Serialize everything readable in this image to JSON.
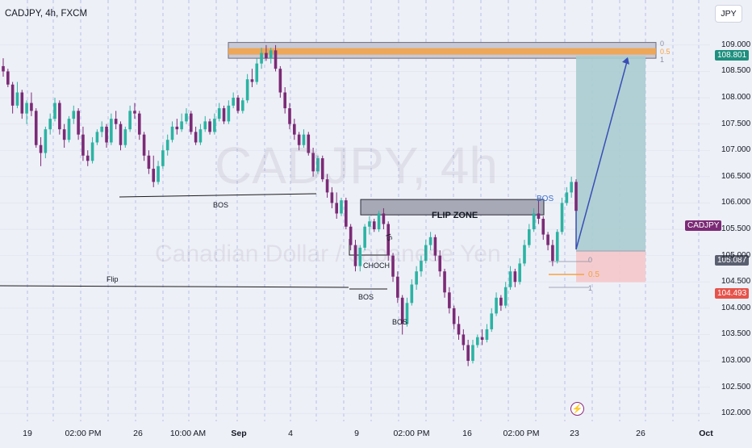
{
  "title": "CADJPY, 4h, FXCM",
  "currency_button": "JPY",
  "symbol_tag": "CADJPY",
  "price_tags": {
    "current": "108.801",
    "entry": "105.087",
    "stop": "104.493"
  },
  "watermark": {
    "line1": "CADJPY, 4h",
    "line2": "Canadian Dollar / Japanese Yen"
  },
  "colors": {
    "bull": "#2bb3a3",
    "bear": "#7b2a76",
    "target_zone": "#a9ccd0",
    "stop_zone": "#f3c9cc",
    "fib_orange": "#f5a142",
    "arrow": "#3a4db5"
  },
  "annotations": {
    "flip_zone": "FLIP ZONE",
    "bos_left": "BOS",
    "bos_right_blue": "BOS",
    "bos_low": "BOS",
    "bos_mid": "BOS",
    "choch": "CHOCH",
    "flip": "Flip",
    "sweep": "IS",
    "fib_top": [
      "0",
      "0.5",
      "1"
    ],
    "fib_bottom": [
      "0",
      "0.5",
      "1"
    ]
  },
  "chart_data": {
    "type": "candlestick",
    "title": "CADJPY, 4h, FXCM",
    "y_ticks": [
      "109.000",
      "108.500",
      "108.000",
      "107.500",
      "107.000",
      "106.500",
      "106.000",
      "105.500",
      "105.000",
      "104.500",
      "104.000",
      "103.500",
      "103.000",
      "102.500",
      "102.000"
    ],
    "x_ticks": [
      "19",
      "02:00 PM",
      "26",
      "10:00 AM",
      "Sep",
      "4",
      "9",
      "02:00 PM",
      "16",
      "02:00 PM",
      "23",
      "26",
      "Oct"
    ],
    "ylim": [
      101.85,
      109.55
    ],
    "levels": {
      "supply_zone": [
        108.75,
        109.05
      ],
      "supply_mid": 108.88,
      "flip_zone": [
        105.82,
        106.02
      ],
      "entry": 105.087,
      "stop_zone": [
        104.493,
        105.087
      ],
      "target": 108.801
    },
    "candles_ohlc": [
      [
        108.6,
        108.75,
        108.4,
        108.5
      ],
      [
        108.5,
        108.55,
        108.2,
        108.25
      ],
      [
        108.25,
        108.3,
        107.7,
        107.85
      ],
      [
        107.85,
        108.3,
        107.8,
        108.1
      ],
      [
        108.1,
        108.15,
        107.6,
        107.7
      ],
      [
        107.7,
        107.95,
        107.5,
        107.9
      ],
      [
        107.9,
        108.1,
        107.65,
        107.75
      ],
      [
        107.75,
        107.8,
        107.05,
        107.1
      ],
      [
        107.1,
        107.25,
        106.7,
        106.95
      ],
      [
        106.95,
        107.45,
        106.85,
        107.4
      ],
      [
        107.4,
        107.7,
        107.3,
        107.6
      ],
      [
        107.6,
        108.0,
        107.55,
        107.9
      ],
      [
        107.9,
        107.95,
        107.3,
        107.4
      ],
      [
        107.4,
        107.5,
        107.05,
        107.2
      ],
      [
        107.2,
        107.65,
        107.15,
        107.6
      ],
      [
        107.6,
        107.85,
        107.5,
        107.75
      ],
      [
        107.75,
        107.8,
        107.2,
        107.3
      ],
      [
        107.3,
        107.45,
        106.8,
        106.9
      ],
      [
        106.9,
        107.0,
        106.7,
        106.8
      ],
      [
        106.8,
        107.25,
        106.75,
        107.15
      ],
      [
        107.15,
        107.4,
        107.1,
        107.35
      ],
      [
        107.35,
        107.55,
        107.25,
        107.45
      ],
      [
        107.45,
        107.5,
        107.05,
        107.15
      ],
      [
        107.15,
        107.7,
        107.1,
        107.6
      ],
      [
        107.6,
        107.75,
        107.4,
        107.5
      ],
      [
        107.5,
        107.55,
        107.0,
        107.1
      ],
      [
        107.1,
        107.45,
        107.05,
        107.4
      ],
      [
        107.4,
        107.85,
        107.35,
        107.75
      ],
      [
        107.75,
        107.9,
        107.6,
        107.7
      ],
      [
        107.7,
        107.75,
        107.2,
        107.3
      ],
      [
        107.3,
        107.35,
        106.8,
        106.9
      ],
      [
        106.9,
        107.0,
        106.55,
        106.65
      ],
      [
        106.65,
        106.9,
        106.3,
        106.4
      ],
      [
        106.4,
        106.8,
        106.35,
        106.7
      ],
      [
        106.7,
        107.1,
        106.65,
        107.0
      ],
      [
        107.0,
        107.3,
        106.9,
        107.2
      ],
      [
        107.2,
        107.55,
        107.15,
        107.45
      ],
      [
        107.45,
        107.6,
        107.3,
        107.4
      ],
      [
        107.4,
        107.7,
        107.35,
        107.55
      ],
      [
        107.55,
        107.8,
        107.5,
        107.7
      ],
      [
        107.7,
        107.75,
        107.3,
        107.35
      ],
      [
        107.35,
        107.45,
        107.1,
        107.15
      ],
      [
        107.15,
        107.5,
        107.1,
        107.4
      ],
      [
        107.4,
        107.65,
        107.35,
        107.55
      ],
      [
        107.55,
        107.6,
        107.3,
        107.35
      ],
      [
        107.35,
        107.7,
        107.3,
        107.6
      ],
      [
        107.6,
        107.9,
        107.55,
        107.8
      ],
      [
        107.8,
        107.85,
        107.5,
        107.55
      ],
      [
        107.55,
        107.95,
        107.5,
        107.85
      ],
      [
        107.85,
        108.1,
        107.8,
        108.0
      ],
      [
        108.0,
        108.05,
        107.7,
        107.75
      ],
      [
        107.75,
        108.0,
        107.7,
        107.95
      ],
      [
        107.95,
        108.45,
        107.9,
        108.35
      ],
      [
        108.35,
        108.55,
        108.2,
        108.3
      ],
      [
        108.3,
        108.75,
        108.25,
        108.65
      ],
      [
        108.65,
        108.95,
        108.55,
        108.85
      ],
      [
        108.85,
        109.0,
        108.7,
        108.75
      ],
      [
        108.75,
        108.95,
        108.65,
        108.9
      ],
      [
        108.9,
        109.0,
        108.5,
        108.55
      ],
      [
        108.55,
        108.6,
        108.0,
        108.1
      ],
      [
        108.1,
        108.2,
        107.7,
        107.8
      ],
      [
        107.8,
        107.9,
        107.4,
        107.5
      ],
      [
        107.5,
        107.6,
        107.2,
        107.3
      ],
      [
        107.3,
        107.35,
        107.0,
        107.1
      ],
      [
        107.1,
        107.4,
        107.05,
        107.3
      ],
      [
        107.3,
        107.35,
        106.9,
        106.95
      ],
      [
        106.95,
        107.05,
        106.5,
        106.6
      ],
      [
        106.6,
        106.9,
        106.55,
        106.85
      ],
      [
        106.85,
        106.9,
        106.4,
        106.45
      ],
      [
        106.45,
        106.55,
        106.1,
        106.2
      ],
      [
        106.2,
        106.3,
        105.9,
        106.0
      ],
      [
        106.0,
        106.2,
        105.7,
        105.8
      ],
      [
        105.8,
        106.1,
        105.75,
        106.05
      ],
      [
        106.05,
        106.1,
        105.5,
        105.55
      ],
      [
        105.55,
        105.6,
        105.1,
        105.2
      ],
      [
        105.2,
        105.3,
        104.7,
        104.8
      ],
      [
        104.8,
        105.2,
        104.7,
        105.15
      ],
      [
        105.15,
        105.6,
        105.1,
        105.55
      ],
      [
        105.55,
        105.75,
        105.4,
        105.65
      ],
      [
        105.65,
        105.7,
        105.45,
        105.5
      ],
      [
        105.5,
        105.85,
        105.45,
        105.8
      ],
      [
        105.8,
        105.9,
        105.5,
        105.6
      ],
      [
        105.6,
        105.65,
        104.9,
        105.0
      ],
      [
        105.0,
        105.05,
        104.5,
        104.6
      ],
      [
        104.6,
        104.7,
        104.1,
        104.2
      ],
      [
        104.2,
        104.25,
        103.5,
        103.7
      ],
      [
        103.7,
        104.2,
        103.65,
        104.1
      ],
      [
        104.1,
        104.55,
        104.05,
        104.45
      ],
      [
        104.45,
        104.8,
        104.35,
        104.7
      ],
      [
        104.7,
        105.0,
        104.6,
        104.9
      ],
      [
        104.9,
        105.3,
        104.85,
        105.2
      ],
      [
        105.2,
        105.45,
        105.1,
        105.35
      ],
      [
        105.35,
        105.4,
        104.9,
        105.0
      ],
      [
        105.0,
        105.1,
        104.6,
        104.7
      ],
      [
        104.7,
        104.75,
        104.2,
        104.3
      ],
      [
        104.3,
        104.4,
        103.9,
        104.0
      ],
      [
        104.0,
        104.05,
        103.6,
        103.7
      ],
      [
        103.7,
        103.85,
        103.4,
        103.5
      ],
      [
        103.5,
        103.6,
        103.2,
        103.3
      ],
      [
        103.3,
        103.4,
        102.9,
        103.0
      ],
      [
        103.0,
        103.4,
        102.95,
        103.3
      ],
      [
        103.3,
        103.5,
        103.25,
        103.45
      ],
      [
        103.45,
        103.6,
        103.3,
        103.4
      ],
      [
        103.4,
        103.7,
        103.35,
        103.6
      ],
      [
        103.6,
        104.0,
        103.55,
        103.9
      ],
      [
        103.9,
        104.3,
        103.85,
        104.2
      ],
      [
        104.2,
        104.25,
        103.95,
        104.05
      ],
      [
        104.05,
        104.5,
        104.0,
        104.4
      ],
      [
        104.4,
        104.8,
        104.35,
        104.7
      ],
      [
        104.7,
        104.75,
        104.4,
        104.5
      ],
      [
        104.5,
        104.95,
        104.45,
        104.85
      ],
      [
        104.85,
        105.3,
        104.8,
        105.2
      ],
      [
        105.2,
        105.6,
        105.15,
        105.5
      ],
      [
        105.5,
        105.9,
        105.45,
        105.8
      ],
      [
        105.8,
        106.05,
        105.6,
        105.7
      ],
      [
        105.7,
        105.75,
        105.3,
        105.4
      ],
      [
        105.4,
        105.45,
        105.1,
        105.2
      ],
      [
        105.2,
        105.3,
        104.8,
        104.9
      ],
      [
        104.9,
        105.5,
        104.85,
        105.45
      ],
      [
        105.45,
        106.1,
        105.4,
        106.0
      ],
      [
        106.0,
        106.3,
        105.95,
        106.2
      ],
      [
        106.2,
        106.5,
        106.1,
        106.4
      ],
      [
        106.4,
        106.45,
        105.8,
        105.85
      ]
    ]
  }
}
